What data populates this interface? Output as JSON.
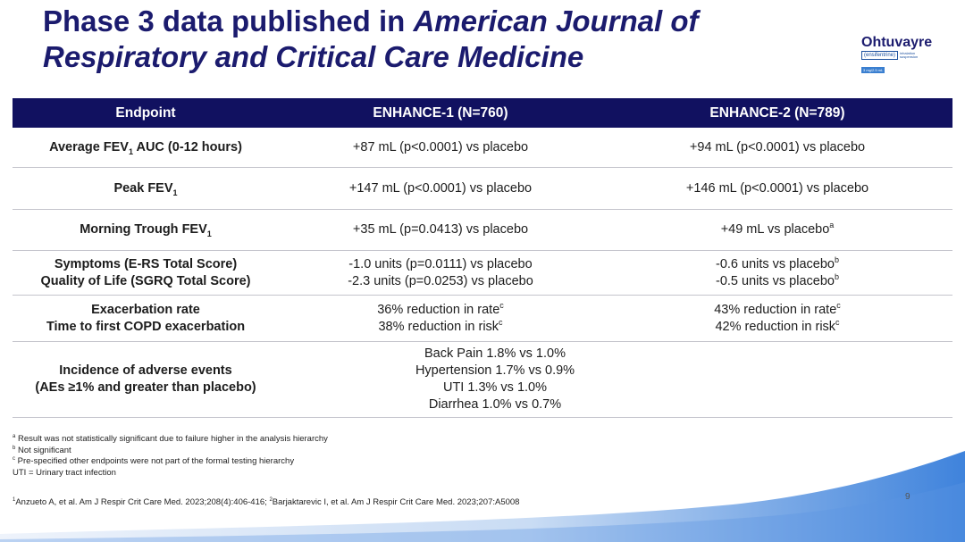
{
  "title": {
    "line1_plain": "Phase 3 data published in ",
    "line1_italic": "American Journal of",
    "line2_italic": "Respiratory and Critical Care Medicine"
  },
  "logo": {
    "name": "Ohtuvayre",
    "generic": "(ensifentrine)",
    "route": "inhalation suspension",
    "dose": "3 mg/2.5 mL"
  },
  "table": {
    "headers": [
      "Endpoint",
      "ENHANCE-1 (N=760)",
      "ENHANCE-2 (N=789)"
    ],
    "rows": {
      "avg_fev1": {
        "endpoint_pre": "Average FEV",
        "endpoint_sub": "1",
        "endpoint_post": " AUC (0-12 hours)",
        "e1": "+87 mL (p<0.0001) vs placebo",
        "e2": "+94 mL (p<0.0001) vs placebo"
      },
      "peak_fev1": {
        "endpoint_pre": "Peak FEV",
        "endpoint_sub": "1",
        "e1": "+147 mL (p<0.0001) vs placebo",
        "e2": "+146 mL (p<0.0001) vs placebo"
      },
      "trough_fev1": {
        "endpoint_pre": "Morning Trough FEV",
        "endpoint_sub": "1",
        "e1": "+35 mL (p=0.0413) vs placebo",
        "e2": "+49 mL vs placebo",
        "e2_sup": "a"
      },
      "symptoms_qol": {
        "endpoint_1": "Symptoms (E-RS Total Score)",
        "endpoint_2": "Quality of Life (SGRQ Total Score)",
        "e1_1": "-1.0 units (p=0.0111) vs placebo",
        "e1_2": "-2.3 units (p=0.0253) vs placebo",
        "e2_1": "-0.6 units vs placebo",
        "e2_1_sup": "b",
        "e2_2": "-0.5 units vs placebo",
        "e2_2_sup": "b"
      },
      "exacerbation": {
        "endpoint_1": "Exacerbation rate",
        "endpoint_2": "Time to first COPD exacerbation",
        "e1_1": "36% reduction in rate",
        "e1_1_sup": "c",
        "e1_2": "38% reduction in risk",
        "e1_2_sup": "c",
        "e2_1": "43% reduction in rate",
        "e2_1_sup": "c",
        "e2_2": "42% reduction in risk",
        "e2_2_sup": "c"
      },
      "adverse_events": {
        "endpoint_1": "Incidence of adverse events",
        "endpoint_2": "(AEs ≥1% and greater than placebo)",
        "items": [
          "Back Pain 1.8% vs 1.0%",
          "Hypertension 1.7% vs 0.9%",
          "UTI 1.3% vs 1.0%",
          "Diarrhea 1.0% vs 0.7%"
        ]
      }
    }
  },
  "footnotes": [
    {
      "mark": "a",
      "text": " Result was not statistically significant due to failure higher in the analysis hierarchy"
    },
    {
      "mark": "b",
      "text": " Not significant"
    },
    {
      "mark": "c",
      "text": " Pre-specified other endpoints were not part of the formal testing hierarchy"
    },
    {
      "mark": "",
      "text": "UTI = Urinary tract infection"
    }
  ],
  "references": {
    "ref1_mark": "1",
    "ref1": "Anzueto A, et al. Am J  Respir Crit Care Med. 2023;208(4):406-416; ",
    "ref2_mark": "2",
    "ref2": "Barjaktarevic I, et al. Am J Respir Crit Care Med. 2023;207:A5008"
  },
  "page_number": "9",
  "colors": {
    "title": "#1b1b6e",
    "header_bg": "#111160",
    "wave_light": "#dbe8f8",
    "wave_dark": "#4a88de"
  }
}
